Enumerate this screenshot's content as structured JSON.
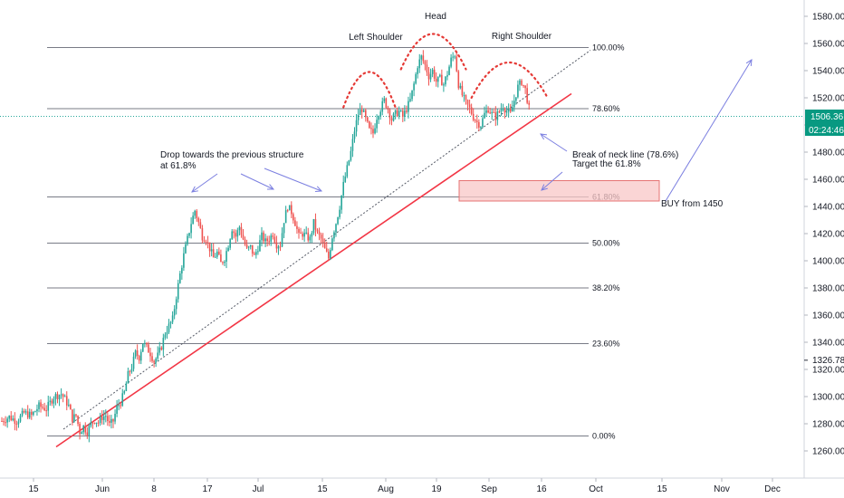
{
  "colors": {
    "up": "#26a69a",
    "down": "#ef5350",
    "neckline": "#f23645",
    "shoulder_arc": "#e53935",
    "fib_line": "#787b86",
    "annotation_arrow": "#7b7fe0",
    "current_price_line": "#26a69a",
    "current_price_box": "#089981",
    "target_zone_fill": "#f8c7c7",
    "target_zone_stroke": "#e57373",
    "price_marker": "#2a2e39"
  },
  "annotations": {
    "head": "Head",
    "left_shoulder": "Left Shoulder",
    "right_shoulder": "Right Shoulder",
    "drop_line1": "Drop towards the previous structure",
    "drop_line2": "at 61.8%",
    "break_line1": "Break of neck line (78.6%)",
    "break_line2": "Target the 61.8%",
    "buy": "BUY from 1450"
  },
  "price_readouts": {
    "current_price": "1506.36",
    "countdown": "02:24:46",
    "marker_price": "1326.78"
  },
  "chart_data": {
    "type": "candlestick",
    "title": "",
    "xlabel": "",
    "ylabel": "",
    "ylim": [
      1250,
      1590
    ],
    "y_ticks": [
      "1260.00",
      "1280.00",
      "1300.00",
      "1320.00",
      "1340.00",
      "1360.00",
      "1380.00",
      "1400.00",
      "1420.00",
      "1440.00",
      "1460.00",
      "1480.00",
      "1500.00",
      "1520.00",
      "1540.00",
      "1560.00",
      "1580.00"
    ],
    "x_ticks": [
      "15",
      "Jun",
      "8",
      "17",
      "Jul",
      "15",
      "Aug",
      "19",
      "Sep",
      "16",
      "Oct",
      "15",
      "Nov",
      "18",
      "Dec"
    ],
    "fib_levels": [
      {
        "label": "100.00%",
        "price": 1557
      },
      {
        "label": "78.60%",
        "price": 1512
      },
      {
        "label": "61.80%",
        "price": 1447
      },
      {
        "label": "50.00%",
        "price": 1413
      },
      {
        "label": "38.20%",
        "price": 1380
      },
      {
        "label": "23.60%",
        "price": 1339
      },
      {
        "label": "0.00%",
        "price": 1271
      }
    ],
    "target_zone": {
      "low": 1444,
      "high": 1459
    },
    "current_price": 1506.36,
    "price_marker": 1326.78,
    "path_points": [
      [
        0,
        1282
      ],
      [
        4,
        1285
      ],
      [
        8,
        1282
      ],
      [
        12,
        1288
      ],
      [
        16,
        1286
      ],
      [
        20,
        1293
      ],
      [
        24,
        1291
      ],
      [
        28,
        1300
      ],
      [
        32,
        1302
      ],
      [
        34,
        1298
      ],
      [
        36,
        1293
      ],
      [
        38,
        1284
      ],
      [
        40,
        1286
      ],
      [
        42,
        1274
      ],
      [
        44,
        1278
      ],
      [
        46,
        1274
      ],
      [
        48,
        1280
      ],
      [
        50,
        1283
      ],
      [
        52,
        1281
      ],
      [
        54,
        1285
      ],
      [
        56,
        1286
      ],
      [
        58,
        1279
      ],
      [
        60,
        1282
      ],
      [
        62,
        1292
      ],
      [
        64,
        1296
      ],
      [
        66,
        1303
      ],
      [
        68,
        1316
      ],
      [
        70,
        1322
      ],
      [
        72,
        1332
      ],
      [
        74,
        1329
      ],
      [
        76,
        1340
      ],
      [
        78,
        1336
      ],
      [
        80,
        1332
      ],
      [
        82,
        1326
      ],
      [
        84,
        1330
      ],
      [
        86,
        1337
      ],
      [
        88,
        1347
      ],
      [
        90,
        1352
      ],
      [
        92,
        1357
      ],
      [
        94,
        1374
      ],
      [
        96,
        1390
      ],
      [
        98,
        1404
      ],
      [
        100,
        1416
      ],
      [
        102,
        1428
      ],
      [
        104,
        1437
      ],
      [
        106,
        1428
      ],
      [
        108,
        1418
      ],
      [
        110,
        1416
      ],
      [
        112,
        1409
      ],
      [
        114,
        1402
      ],
      [
        116,
        1406
      ],
      [
        118,
        1398
      ],
      [
        120,
        1402
      ],
      [
        122,
        1412
      ],
      [
        124,
        1424
      ],
      [
        126,
        1418
      ],
      [
        128,
        1425
      ],
      [
        130,
        1416
      ],
      [
        132,
        1408
      ],
      [
        134,
        1410
      ],
      [
        136,
        1403
      ],
      [
        138,
        1410
      ],
      [
        140,
        1418
      ],
      [
        142,
        1414
      ],
      [
        144,
        1416
      ],
      [
        146,
        1420
      ],
      [
        148,
        1412
      ],
      [
        150,
        1412
      ],
      [
        152,
        1430
      ],
      [
        154,
        1440
      ],
      [
        156,
        1436
      ],
      [
        158,
        1428
      ],
      [
        160,
        1418
      ],
      [
        162,
        1420
      ],
      [
        164,
        1418
      ],
      [
        166,
        1416
      ],
      [
        168,
        1428
      ],
      [
        170,
        1420
      ],
      [
        172,
        1416
      ],
      [
        174,
        1408
      ],
      [
        176,
        1402
      ],
      [
        178,
        1418
      ],
      [
        180,
        1428
      ],
      [
        182,
        1440
      ],
      [
        184,
        1456
      ],
      [
        186,
        1468
      ],
      [
        188,
        1480
      ],
      [
        190,
        1496
      ],
      [
        192,
        1508
      ],
      [
        194,
        1512
      ],
      [
        196,
        1504
      ],
      [
        198,
        1496
      ],
      [
        200,
        1494
      ],
      [
        202,
        1506
      ],
      [
        204,
        1512
      ],
      [
        206,
        1518
      ],
      [
        208,
        1512
      ],
      [
        210,
        1504
      ],
      [
        212,
        1508
      ],
      [
        214,
        1510
      ],
      [
        216,
        1506
      ],
      [
        218,
        1512
      ],
      [
        220,
        1518
      ],
      [
        222,
        1530
      ],
      [
        224,
        1544
      ],
      [
        226,
        1550
      ],
      [
        228,
        1544
      ],
      [
        230,
        1536
      ],
      [
        232,
        1540
      ],
      [
        234,
        1532
      ],
      [
        236,
        1534
      ],
      [
        238,
        1530
      ],
      [
        240,
        1538
      ],
      [
        242,
        1548
      ],
      [
        244,
        1552
      ],
      [
        246,
        1530
      ],
      [
        248,
        1522
      ],
      [
        250,
        1516
      ],
      [
        252,
        1512
      ],
      [
        254,
        1506
      ],
      [
        256,
        1502
      ],
      [
        258,
        1500
      ],
      [
        260,
        1508
      ],
      [
        262,
        1512
      ],
      [
        264,
        1508
      ],
      [
        266,
        1506
      ],
      [
        268,
        1510
      ],
      [
        270,
        1514
      ],
      [
        272,
        1510
      ],
      [
        274,
        1508
      ],
      [
        276,
        1518
      ],
      [
        278,
        1528
      ],
      [
        280,
        1532
      ],
      [
        282,
        1526
      ],
      [
        284,
        1512
      ]
    ],
    "candle_days": 285,
    "shoulders": [
      {
        "name": "Left Shoulder",
        "day_start": 184,
        "day_end": 212,
        "peak_day": 198,
        "peak_price": 1539
      },
      {
        "name": "Head",
        "day_start": 215,
        "day_end": 250,
        "peak_day": 232,
        "peak_price": 1567
      },
      {
        "name": "Right Shoulder",
        "day_start": 253,
        "day_end": 294,
        "peak_day": 273,
        "peak_price": 1546
      }
    ]
  }
}
